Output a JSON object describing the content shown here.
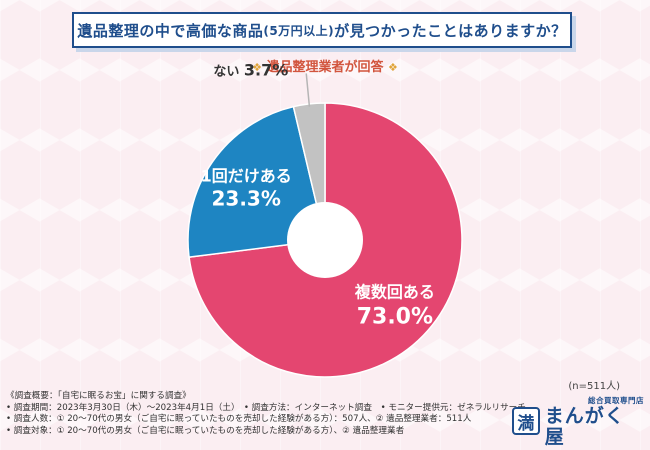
{
  "title": {
    "main_before": "遺品整理の中で高価な商品",
    "main_small": "(5万円以上)",
    "main_after": "が見つかったことはありますか？"
  },
  "subtitle": {
    "deco": "❖",
    "text": "遺品整理業者が回答"
  },
  "chart_data": {
    "type": "pie",
    "title": "遺品整理の中で高価な商品(5万円以上)が見つかったことはありますか？",
    "subtitle": "遺品整理業者が回答",
    "slices": [
      {
        "label": "複数回ある",
        "value": 73.0,
        "value_text": "73.0%",
        "color": "#e44670"
      },
      {
        "label": "1回だけある",
        "value": 23.3,
        "value_text": "23.3%",
        "color": "#1e85c2"
      },
      {
        "label": "ない",
        "value": 3.7,
        "value_text": "3.7%",
        "color": "#c2c2c2"
      }
    ],
    "donut": true,
    "sample_note": "(n=511人)"
  },
  "footnotes": [
    "《調査概要：「自宅に眠るお宝」に関する調査》",
    "• 調査期間：2023年3月30日（木）～2023年4月1日（土）　• 調査方法：インターネット調査　• モニター提供元：ゼネラルリサーチ",
    "• 調査人数：① 20～70代の男女（ご自宅に眠っていたものを売却した経験がある方）：507人、② 遺品整理業者：511人",
    "• 調査対象：① 20～70代の男女（ご自宅に眠っていたものを売却した経験がある方）、② 遺品整理業者"
  ],
  "logo": {
    "mark": "満",
    "tagline": "総合買取専門店",
    "name": "まんがく屋"
  }
}
